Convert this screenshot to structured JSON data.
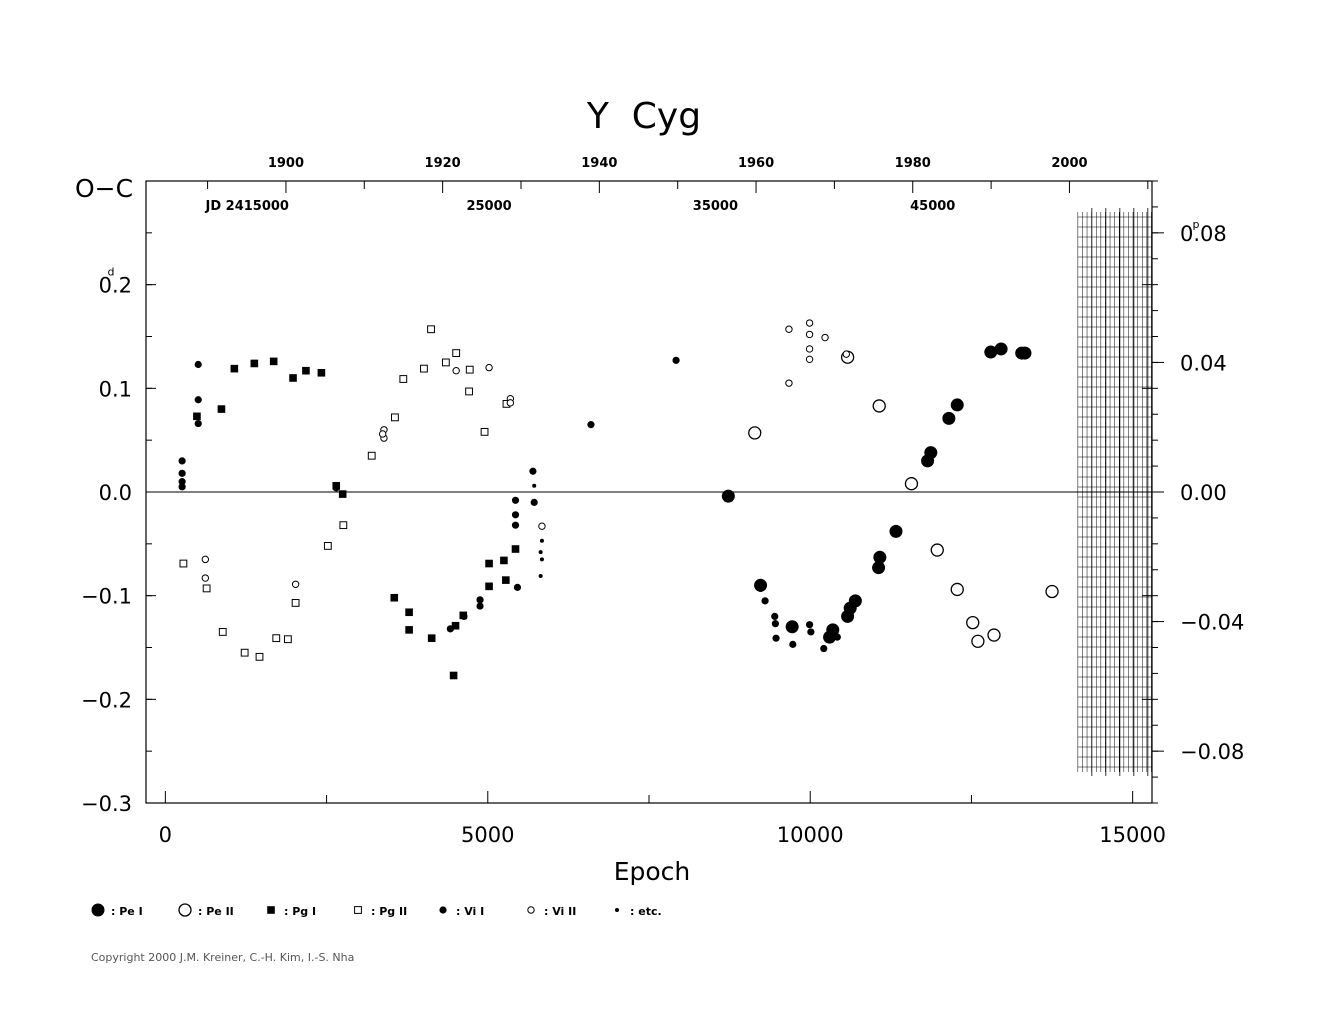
{
  "chart_data": {
    "type": "scatter",
    "title": "Y  Cyg",
    "xlabel": "Epoch",
    "ylabel": "O−C",
    "ylabel_unit": "d",
    "y2_unit": "p",
    "xlim": [
      -300,
      15300
    ],
    "ylim": [
      -0.3,
      0.3
    ],
    "y2lim": [
      -0.096,
      0.096
    ],
    "x_ticks": [
      0,
      5000,
      10000,
      15000
    ],
    "x_tick_labels": [
      "0",
      "5000",
      "10000",
      "15000"
    ],
    "y_ticks": [
      -0.3,
      -0.2,
      -0.1,
      0.0,
      0.1,
      0.2
    ],
    "y_tick_labels": [
      "−0.3",
      "−0.2",
      "−0.1",
      "0.0",
      "0.1",
      "0.2"
    ],
    "y2_ticks": [
      -0.08,
      -0.04,
      0.0,
      0.04,
      0.08
    ],
    "y2_tick_labels": [
      "−0.08",
      "−0.04",
      "0.00",
      "0.04",
      "0.08"
    ],
    "top_year_ticks": [
      {
        "x": 1870,
        "label": "1900"
      },
      {
        "x": 4300,
        "label": "1920"
      },
      {
        "x": 6730,
        "label": "1940"
      },
      {
        "x": 9160,
        "label": "1960"
      },
      {
        "x": 11590,
        "label": "1980"
      },
      {
        "x": 14020,
        "label": "2000"
      }
    ],
    "top_jd_labels": [
      {
        "x": 1270,
        "label": "JD  2415000"
      },
      {
        "x": 5020,
        "label": "25000"
      },
      {
        "x": 8530,
        "label": "35000"
      },
      {
        "x": 11900,
        "label": "45000"
      }
    ],
    "legend": [
      {
        "symbol": "pe1",
        "label": ": Pe I"
      },
      {
        "symbol": "pe2",
        "label": ": Pe II"
      },
      {
        "symbol": "pg1",
        "label": ": Pg I"
      },
      {
        "symbol": "pg2",
        "label": ": Pg II"
      },
      {
        "symbol": "vi1",
        "label": ": Vi I"
      },
      {
        "symbol": "vi2",
        "label": ": Vi II"
      },
      {
        "symbol": "etc",
        "label": ": etc."
      }
    ],
    "series": [
      {
        "name": "Pe I",
        "symbol": "pe1",
        "points": [
          [
            8730,
            -0.004
          ],
          [
            9230,
            -0.09
          ],
          [
            9720,
            -0.13
          ],
          [
            10300,
            -0.14
          ],
          [
            10350,
            -0.133
          ],
          [
            10580,
            -0.12
          ],
          [
            10620,
            -0.112
          ],
          [
            10700,
            -0.105
          ],
          [
            11060,
            -0.073
          ],
          [
            11080,
            -0.063
          ],
          [
            11330,
            -0.038
          ],
          [
            11820,
            0.03
          ],
          [
            11870,
            0.038
          ],
          [
            12150,
            0.071
          ],
          [
            12280,
            0.084
          ],
          [
            12800,
            0.135
          ],
          [
            12960,
            0.138
          ],
          [
            13280,
            0.134
          ],
          [
            13330,
            0.134
          ]
        ]
      },
      {
        "name": "Pe II",
        "symbol": "pe2",
        "points": [
          [
            9140,
            0.057
          ],
          [
            10580,
            0.13
          ],
          [
            11070,
            0.083
          ],
          [
            11570,
            0.008
          ],
          [
            11970,
            -0.056
          ],
          [
            12280,
            -0.094
          ],
          [
            12520,
            -0.126
          ],
          [
            12600,
            -0.144
          ],
          [
            12850,
            -0.138
          ],
          [
            13750,
            -0.096
          ]
        ]
      },
      {
        "name": "Pg I",
        "symbol": "pg1",
        "points": [
          [
            490,
            0.073
          ],
          [
            870,
            0.08
          ],
          [
            1070,
            0.119
          ],
          [
            1380,
            0.124
          ],
          [
            1680,
            0.126
          ],
          [
            1980,
            0.11
          ],
          [
            2180,
            0.117
          ],
          [
            2420,
            0.115
          ],
          [
            2650,
            0.006
          ],
          [
            2750,
            -0.002
          ],
          [
            3550,
            -0.102
          ],
          [
            3780,
            -0.116
          ],
          [
            3780,
            -0.133
          ],
          [
            4130,
            -0.141
          ],
          [
            4470,
            -0.177
          ],
          [
            4500,
            -0.129
          ],
          [
            4620,
            -0.119
          ],
          [
            5020,
            -0.091
          ],
          [
            5020,
            -0.069
          ],
          [
            5250,
            -0.066
          ],
          [
            5280,
            -0.085
          ],
          [
            5430,
            -0.055
          ]
        ]
      },
      {
        "name": "Pg II",
        "symbol": "pg2",
        "points": [
          [
            280,
            -0.069
          ],
          [
            640,
            -0.093
          ],
          [
            890,
            -0.135
          ],
          [
            1230,
            -0.155
          ],
          [
            1460,
            -0.159
          ],
          [
            1720,
            -0.141
          ],
          [
            1900,
            -0.142
          ],
          [
            2020,
            -0.107
          ],
          [
            2520,
            -0.052
          ],
          [
            2760,
            -0.032
          ],
          [
            3200,
            0.035
          ],
          [
            3560,
            0.072
          ],
          [
            3690,
            0.109
          ],
          [
            4010,
            0.119
          ],
          [
            4120,
            0.157
          ],
          [
            4350,
            0.125
          ],
          [
            4510,
            0.134
          ],
          [
            4720,
            0.118
          ],
          [
            4710,
            0.097
          ],
          [
            4950,
            0.058
          ],
          [
            5290,
            0.085
          ]
        ]
      },
      {
        "name": "Vi I",
        "symbol": "vi1",
        "points": [
          [
            260,
            0.03
          ],
          [
            260,
            0.018
          ],
          [
            260,
            0.01
          ],
          [
            260,
            0.005
          ],
          [
            510,
            0.123
          ],
          [
            510,
            0.089
          ],
          [
            510,
            0.066
          ],
          [
            2650,
            0.004
          ],
          [
            4420,
            -0.132
          ],
          [
            4630,
            -0.12
          ],
          [
            4880,
            -0.11
          ],
          [
            4880,
            -0.104
          ],
          [
            5430,
            -0.008
          ],
          [
            5430,
            -0.022
          ],
          [
            5430,
            -0.032
          ],
          [
            5460,
            -0.092
          ],
          [
            5700,
            0.02
          ],
          [
            5720,
            -0.01
          ],
          [
            6600,
            0.065
          ],
          [
            7920,
            0.127
          ],
          [
            9230,
            -0.093
          ],
          [
            9300,
            -0.105
          ],
          [
            9450,
            -0.12
          ],
          [
            9460,
            -0.127
          ],
          [
            9470,
            -0.141
          ],
          [
            9730,
            -0.147
          ],
          [
            9990,
            -0.128
          ],
          [
            10010,
            -0.135
          ],
          [
            10210,
            -0.151
          ],
          [
            10420,
            -0.14
          ]
        ]
      },
      {
        "name": "Vi II",
        "symbol": "vi2",
        "points": [
          [
            620,
            -0.065
          ],
          [
            620,
            -0.083
          ],
          [
            2020,
            -0.089
          ],
          [
            3390,
            0.06
          ],
          [
            3390,
            0.052
          ],
          [
            3370,
            0.056
          ],
          [
            4510,
            0.117
          ],
          [
            5020,
            0.12
          ],
          [
            5350,
            0.09
          ],
          [
            5350,
            0.086
          ],
          [
            5840,
            -0.033
          ],
          [
            9670,
            0.157
          ],
          [
            9670,
            0.105
          ],
          [
            9990,
            0.163
          ],
          [
            9990,
            0.152
          ],
          [
            9990,
            0.138
          ],
          [
            9990,
            0.128
          ],
          [
            10230,
            0.149
          ],
          [
            10560,
            0.133
          ]
        ]
      },
      {
        "name": "etc.",
        "symbol": "etc",
        "points": [
          [
            5720,
            0.006
          ],
          [
            5820,
            -0.058
          ],
          [
            5820,
            -0.081
          ],
          [
            5840,
            -0.047
          ],
          [
            5840,
            -0.065
          ]
        ]
      }
    ]
  },
  "copyright": "Copyright 2000 J.M. Kreiner, C.-H. Kim, I.-S. Nha"
}
